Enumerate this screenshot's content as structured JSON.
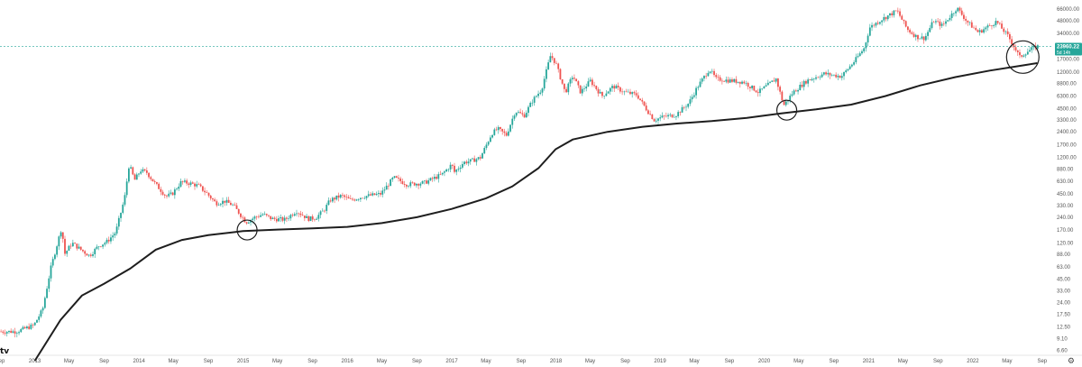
{
  "chart_data": {
    "type": "candlestick",
    "scale": "log",
    "ylim": [
      5.8,
      78000
    ],
    "x_range": [
      "2012-09-01",
      "2022-09-30"
    ],
    "y_ticks": [
      "66000.00",
      "48000.00",
      "34000.00",
      "24000.00",
      "17000.00",
      "12000.00",
      "8800.00",
      "6300.00",
      "4500.00",
      "3300.00",
      "2400.00",
      "1700.00",
      "1200.00",
      "880.00",
      "630.00",
      "450.00",
      "330.00",
      "240.00",
      "170.00",
      "120.00",
      "88.00",
      "63.00",
      "45.00",
      "33.00",
      "24.00",
      "17.50",
      "12.50",
      "9.10",
      "6.60"
    ],
    "x_ticks": [
      {
        "label": "Sep",
        "date": "2012-09-01"
      },
      {
        "label": "2013",
        "date": "2013-01-01"
      },
      {
        "label": "May",
        "date": "2013-05-01"
      },
      {
        "label": "Sep",
        "date": "2013-09-01"
      },
      {
        "label": "2014",
        "date": "2014-01-01"
      },
      {
        "label": "May",
        "date": "2014-05-01"
      },
      {
        "label": "Sep",
        "date": "2014-09-01"
      },
      {
        "label": "2015",
        "date": "2015-01-01"
      },
      {
        "label": "May",
        "date": "2015-05-01"
      },
      {
        "label": "Sep",
        "date": "2015-09-01"
      },
      {
        "label": "2016",
        "date": "2016-01-01"
      },
      {
        "label": "May",
        "date": "2016-05-01"
      },
      {
        "label": "Sep",
        "date": "2016-09-01"
      },
      {
        "label": "2017",
        "date": "2017-01-01"
      },
      {
        "label": "May",
        "date": "2017-05-01"
      },
      {
        "label": "Sep",
        "date": "2017-09-01"
      },
      {
        "label": "2018",
        "date": "2018-01-01"
      },
      {
        "label": "May",
        "date": "2018-05-01"
      },
      {
        "label": "Sep",
        "date": "2018-09-01"
      },
      {
        "label": "2019",
        "date": "2019-01-01"
      },
      {
        "label": "May",
        "date": "2019-05-01"
      },
      {
        "label": "Sep",
        "date": "2019-09-01"
      },
      {
        "label": "2020",
        "date": "2020-01-01"
      },
      {
        "label": "May",
        "date": "2020-05-01"
      },
      {
        "label": "Sep",
        "date": "2020-09-01"
      },
      {
        "label": "2021",
        "date": "2021-01-01"
      },
      {
        "label": "May",
        "date": "2021-05-01"
      },
      {
        "label": "Sep",
        "date": "2021-09-01"
      },
      {
        "label": "2022",
        "date": "2022-01-01"
      },
      {
        "label": "May",
        "date": "2022-05-01"
      },
      {
        "label": "Sep",
        "date": "2022-09-01"
      }
    ],
    "current_price": {
      "value": 23960.22,
      "label": "23960.22",
      "countdown": "5d 14h"
    },
    "price_series": [
      [
        "2012-09-01",
        11
      ],
      [
        "2012-11-01",
        11
      ],
      [
        "2013-01-01",
        13
      ],
      [
        "2013-02-01",
        20
      ],
      [
        "2013-03-01",
        60
      ],
      [
        "2013-04-08",
        180
      ],
      [
        "2013-04-20",
        90
      ],
      [
        "2013-05-15",
        120
      ],
      [
        "2013-06-15",
        100
      ],
      [
        "2013-07-15",
        85
      ],
      [
        "2013-08-15",
        110
      ],
      [
        "2013-09-15",
        125
      ],
      [
        "2013-10-15",
        160
      ],
      [
        "2013-11-15",
        400
      ],
      [
        "2013-12-01",
        1000
      ],
      [
        "2013-12-20",
        650
      ],
      [
        "2014-01-10",
        850
      ],
      [
        "2014-02-01",
        800
      ],
      [
        "2014-03-01",
        600
      ],
      [
        "2014-04-10",
        420
      ],
      [
        "2014-05-01",
        450
      ],
      [
        "2014-06-01",
        620
      ],
      [
        "2014-07-01",
        600
      ],
      [
        "2014-08-01",
        560
      ],
      [
        "2014-09-01",
        450
      ],
      [
        "2014-10-01",
        350
      ],
      [
        "2014-11-01",
        370
      ],
      [
        "2014-12-01",
        330
      ],
      [
        "2015-01-15",
        210
      ],
      [
        "2015-02-15",
        240
      ],
      [
        "2015-03-15",
        260
      ],
      [
        "2015-04-15",
        230
      ],
      [
        "2015-06-01",
        225
      ],
      [
        "2015-07-10",
        285
      ],
      [
        "2015-08-20",
        230
      ],
      [
        "2015-09-15",
        235
      ],
      [
        "2015-10-15",
        290
      ],
      [
        "2015-11-05",
        380
      ],
      [
        "2015-12-15",
        430
      ],
      [
        "2016-01-15",
        380
      ],
      [
        "2016-03-01",
        420
      ],
      [
        "2016-05-01",
        450
      ],
      [
        "2016-06-15",
        700
      ],
      [
        "2016-08-01",
        580
      ],
      [
        "2016-10-01",
        610
      ],
      [
        "2016-12-01",
        760
      ],
      [
        "2017-01-05",
        1000
      ],
      [
        "2017-01-12",
        800
      ],
      [
        "2017-02-15",
        1050
      ],
      [
        "2017-03-15",
        1100
      ],
      [
        "2017-04-15",
        1200
      ],
      [
        "2017-05-25",
        2300
      ],
      [
        "2017-06-15",
        2600
      ],
      [
        "2017-07-15",
        2200
      ],
      [
        "2017-08-15",
        4200
      ],
      [
        "2017-09-15",
        3700
      ],
      [
        "2017-10-15",
        5600
      ],
      [
        "2017-11-15",
        7500
      ],
      [
        "2017-12-17",
        19000
      ],
      [
        "2018-01-05",
        15000
      ],
      [
        "2018-02-06",
        6900
      ],
      [
        "2018-03-05",
        11000
      ],
      [
        "2018-04-01",
        7000
      ],
      [
        "2018-05-05",
        9500
      ],
      [
        "2018-06-15",
        6300
      ],
      [
        "2018-07-25",
        8200
      ],
      [
        "2018-09-01",
        7000
      ],
      [
        "2018-10-15",
        6500
      ],
      [
        "2018-11-20",
        4300
      ],
      [
        "2018-12-15",
        3300
      ],
      [
        "2019-01-15",
        3600
      ],
      [
        "2019-03-01",
        3800
      ],
      [
        "2019-04-15",
        5200
      ],
      [
        "2019-05-15",
        8000
      ],
      [
        "2019-06-26",
        13000
      ],
      [
        "2019-07-20",
        10000
      ],
      [
        "2019-09-01",
        9600
      ],
      [
        "2019-10-25",
        9200
      ],
      [
        "2019-12-15",
        7000
      ],
      [
        "2020-02-15",
        10000
      ],
      [
        "2020-03-13",
        4900
      ],
      [
        "2020-04-15",
        7000
      ],
      [
        "2020-06-01",
        9500
      ],
      [
        "2020-08-01",
        11500
      ],
      [
        "2020-10-01",
        10700
      ],
      [
        "2020-11-15",
        16000
      ],
      [
        "2020-12-20",
        23000
      ],
      [
        "2021-01-08",
        40000
      ],
      [
        "2021-02-20",
        50000
      ],
      [
        "2021-04-14",
        63000
      ],
      [
        "2021-05-20",
        38000
      ],
      [
        "2021-06-22",
        31000
      ],
      [
        "2021-07-20",
        30000
      ],
      [
        "2021-08-20",
        48000
      ],
      [
        "2021-09-20",
        42000
      ],
      [
        "2021-11-10",
        68000
      ],
      [
        "2021-12-15",
        47000
      ],
      [
        "2022-01-24",
        35000
      ],
      [
        "2022-03-28",
        47000
      ],
      [
        "2022-05-10",
        31000
      ],
      [
        "2022-06-18",
        18000
      ],
      [
        "2022-07-10",
        20500
      ],
      [
        "2022-08-15",
        24000
      ]
    ],
    "ma_series": [
      [
        "2013-01-01",
        5
      ],
      [
        "2013-04-01",
        15
      ],
      [
        "2013-06-15",
        29
      ],
      [
        "2013-09-01",
        40
      ],
      [
        "2013-12-01",
        60
      ],
      [
        "2014-03-01",
        100
      ],
      [
        "2014-06-01",
        130
      ],
      [
        "2014-09-01",
        148
      ],
      [
        "2015-01-01",
        165
      ],
      [
        "2015-05-01",
        172
      ],
      [
        "2015-09-01",
        178
      ],
      [
        "2016-01-01",
        185
      ],
      [
        "2016-05-01",
        205
      ],
      [
        "2016-09-01",
        240
      ],
      [
        "2017-01-01",
        300
      ],
      [
        "2017-05-01",
        400
      ],
      [
        "2017-08-01",
        550
      ],
      [
        "2017-11-01",
        900
      ],
      [
        "2017-12-31",
        1500
      ],
      [
        "2018-03-01",
        1950
      ],
      [
        "2018-07-01",
        2400
      ],
      [
        "2018-11-01",
        2750
      ],
      [
        "2019-03-01",
        3000
      ],
      [
        "2019-07-01",
        3200
      ],
      [
        "2019-11-01",
        3500
      ],
      [
        "2020-03-01",
        3950
      ],
      [
        "2020-07-01",
        4400
      ],
      [
        "2020-11-01",
        5000
      ],
      [
        "2021-03-01",
        6300
      ],
      [
        "2021-07-01",
        8400
      ],
      [
        "2021-11-01",
        10500
      ],
      [
        "2022-03-01",
        12500
      ],
      [
        "2022-07-01",
        14500
      ],
      [
        "2022-08-15",
        15300
      ]
    ],
    "circles": [
      {
        "date": "2015-01-15",
        "value": 170
      },
      {
        "date": "2020-03-20",
        "value": 4300
      },
      {
        "date": "2022-06-25",
        "value": 18000
      }
    ]
  },
  "branding": {
    "logo_text": "tv"
  },
  "icons": {
    "settings": "gear-icon"
  },
  "colors": {
    "up": "#26a69a",
    "down": "#ef5350",
    "ma": "#1e1e1e",
    "price_line": "#26a69a",
    "axis_text": "#555555"
  }
}
